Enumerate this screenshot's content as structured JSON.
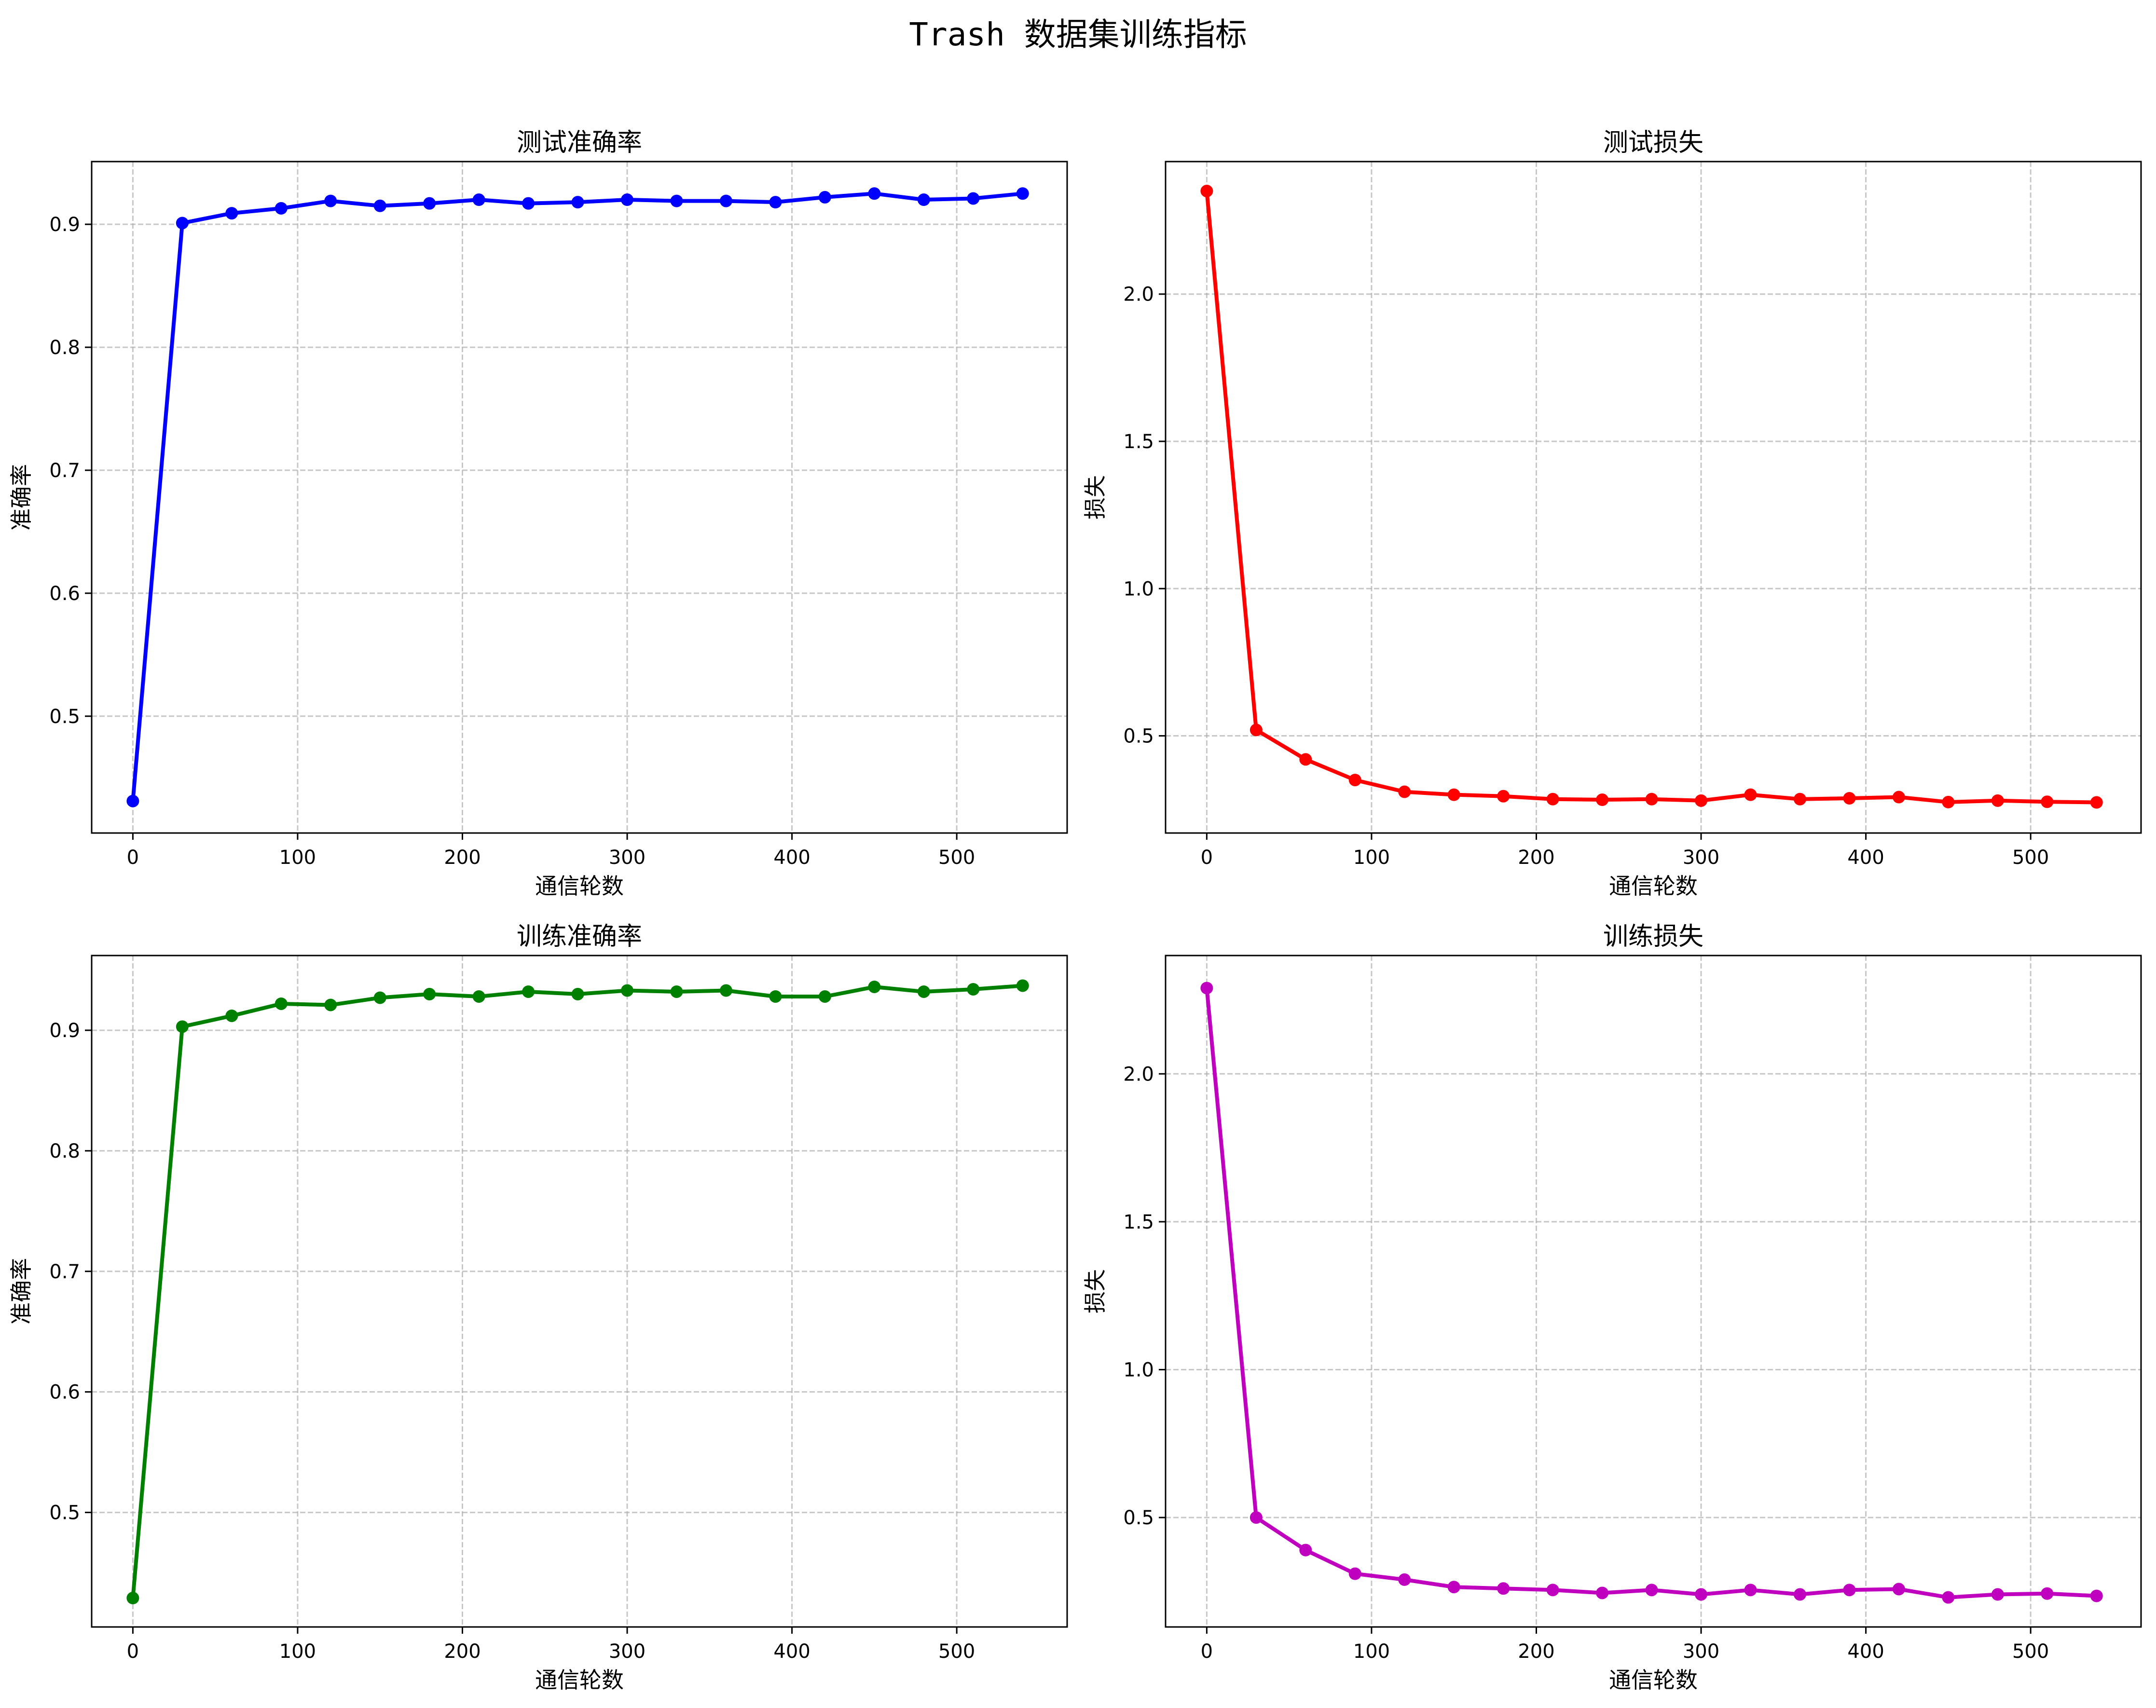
{
  "figure": {
    "title": "Trash 数据集训练指标"
  },
  "chart_data": [
    {
      "type": "line",
      "title": "测试准确率",
      "xlabel": "通信轮数",
      "ylabel": "准确率",
      "color": "#0000ff",
      "xlim": [
        -25,
        567
      ],
      "ylim": [
        0.405,
        0.951
      ],
      "xticks": [
        0,
        100,
        200,
        300,
        400,
        500
      ],
      "yticks": [
        0.5,
        0.6,
        0.7,
        0.8,
        0.9
      ],
      "ytick_labels": [
        "0.5",
        "0.6",
        "0.7",
        "0.8",
        "0.9"
      ],
      "grid": true,
      "x": [
        0,
        30,
        60,
        90,
        120,
        150,
        180,
        210,
        240,
        270,
        300,
        330,
        360,
        390,
        420,
        450,
        480,
        510,
        540
      ],
      "y": [
        0.431,
        0.901,
        0.909,
        0.913,
        0.919,
        0.915,
        0.917,
        0.92,
        0.917,
        0.918,
        0.92,
        0.919,
        0.919,
        0.918,
        0.922,
        0.925,
        0.92,
        0.921,
        0.925
      ]
    },
    {
      "type": "line",
      "title": "测试损失",
      "xlabel": "通信轮数",
      "ylabel": "损失",
      "color": "#ff0000",
      "xlim": [
        -25,
        567
      ],
      "ylim": [
        0.17,
        2.45
      ],
      "xticks": [
        0,
        100,
        200,
        300,
        400,
        500
      ],
      "yticks": [
        0.5,
        1.0,
        1.5,
        2.0
      ],
      "ytick_labels": [
        "0.5",
        "1.0",
        "1.5",
        "2.0"
      ],
      "grid": true,
      "x": [
        0,
        30,
        60,
        90,
        120,
        150,
        180,
        210,
        240,
        270,
        300,
        330,
        360,
        390,
        420,
        450,
        480,
        510,
        540
      ],
      "y": [
        2.35,
        0.52,
        0.42,
        0.35,
        0.31,
        0.3,
        0.295,
        0.285,
        0.283,
        0.285,
        0.28,
        0.3,
        0.285,
        0.288,
        0.292,
        0.275,
        0.28,
        0.276,
        0.274
      ]
    },
    {
      "type": "line",
      "title": "训练准确率",
      "xlabel": "通信轮数",
      "ylabel": "准确率",
      "color": "#008000",
      "xlim": [
        -25,
        567
      ],
      "ylim": [
        0.405,
        0.962
      ],
      "xticks": [
        0,
        100,
        200,
        300,
        400,
        500
      ],
      "yticks": [
        0.5,
        0.6,
        0.7,
        0.8,
        0.9
      ],
      "ytick_labels": [
        "0.5",
        "0.6",
        "0.7",
        "0.8",
        "0.9"
      ],
      "grid": true,
      "x": [
        0,
        30,
        60,
        90,
        120,
        150,
        180,
        210,
        240,
        270,
        300,
        330,
        360,
        390,
        420,
        450,
        480,
        510,
        540
      ],
      "y": [
        0.429,
        0.903,
        0.912,
        0.922,
        0.921,
        0.927,
        0.93,
        0.928,
        0.932,
        0.93,
        0.933,
        0.932,
        0.933,
        0.928,
        0.928,
        0.936,
        0.932,
        0.934,
        0.937
      ]
    },
    {
      "type": "line",
      "title": "训练损失",
      "xlabel": "通信轮数",
      "ylabel": "损失",
      "color": "#bf00bf",
      "xlim": [
        -25,
        567
      ],
      "ylim": [
        0.13,
        2.4
      ],
      "xticks": [
        0,
        100,
        200,
        300,
        400,
        500
      ],
      "yticks": [
        0.5,
        1.0,
        1.5,
        2.0
      ],
      "ytick_labels": [
        "0.5",
        "1.0",
        "1.5",
        "2.0"
      ],
      "grid": true,
      "x": [
        0,
        30,
        60,
        90,
        120,
        150,
        180,
        210,
        240,
        270,
        300,
        330,
        360,
        390,
        420,
        450,
        480,
        510,
        540
      ],
      "y": [
        2.29,
        0.5,
        0.39,
        0.31,
        0.29,
        0.265,
        0.26,
        0.255,
        0.245,
        0.255,
        0.24,
        0.255,
        0.24,
        0.255,
        0.258,
        0.23,
        0.24,
        0.243,
        0.235
      ]
    }
  ]
}
